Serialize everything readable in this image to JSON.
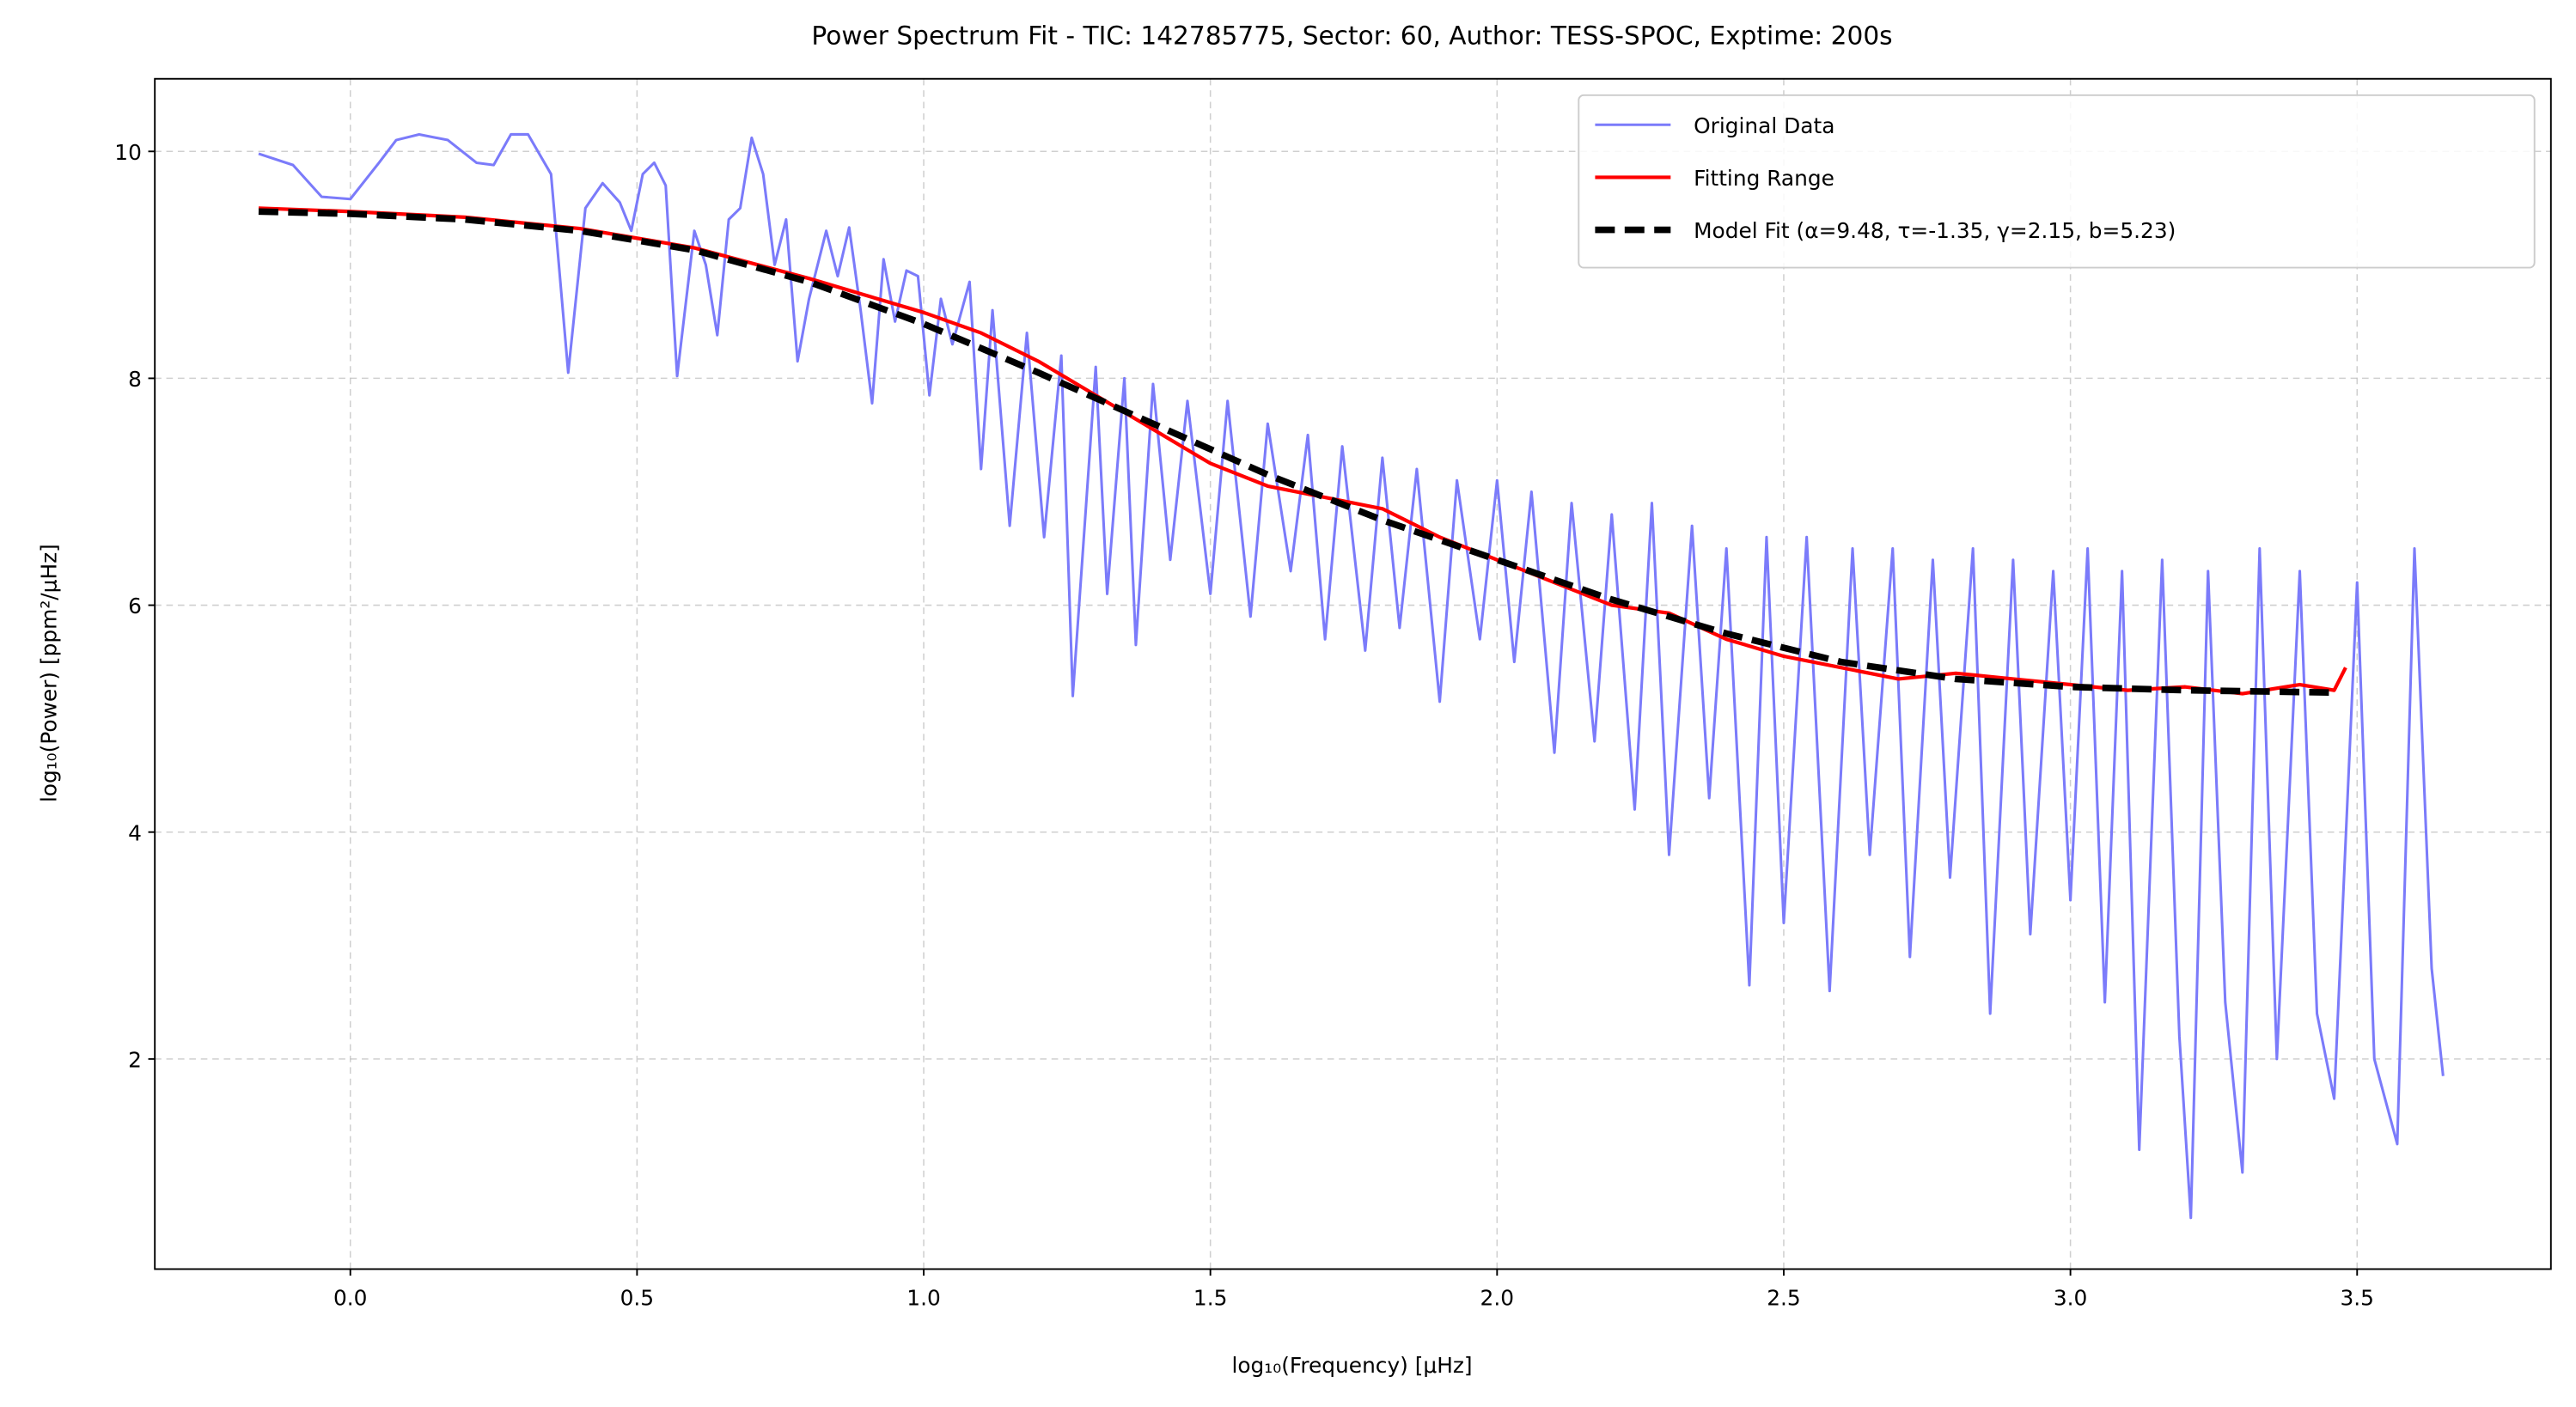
{
  "chart_data": {
    "type": "line",
    "title": "Power Spectrum Fit - TIC: 142785775, Sector: 60, Author: TESS-SPOC, Exptime: 200s",
    "x_label": "log₁₀(Frequency) [μHz]",
    "y_label": "log₁₀(Power) [ppm²/μHz]",
    "xlim": [
      -0.341,
      3.838
    ],
    "ylim": [
      0.148,
      10.64
    ],
    "xticks": [
      {
        "value": 0,
        "label": "0.0"
      },
      0.5,
      {
        "value": 1,
        "label": "1.0"
      },
      1.5,
      {
        "value": 2,
        "label": "2.0"
      },
      2.5,
      {
        "value": 3,
        "label": "3.0"
      },
      3.5
    ],
    "yticks": [
      2,
      4,
      6,
      8,
      10
    ],
    "grid": true,
    "legend": "upper right",
    "series": [
      {
        "name": "Original Data",
        "color": "#7b7bfa",
        "style": "solid",
        "x": [
          -0.16,
          -0.1,
          -0.05,
          0.0,
          0.05,
          0.08,
          0.12,
          0.17,
          0.22,
          0.25,
          0.28,
          0.31,
          0.35,
          0.38,
          0.41,
          0.44,
          0.47,
          0.49,
          0.51,
          0.53,
          0.55,
          0.57,
          0.6,
          0.62,
          0.64,
          0.66,
          0.68,
          0.7,
          0.72,
          0.74,
          0.76,
          0.78,
          0.8,
          0.83,
          0.85,
          0.87,
          0.89,
          0.91,
          0.93,
          0.95,
          0.97,
          0.99,
          1.01,
          1.03,
          1.05,
          1.08,
          1.1,
          1.12,
          1.15,
          1.18,
          1.21,
          1.24,
          1.26,
          1.3,
          1.32,
          1.35,
          1.37,
          1.4,
          1.43,
          1.46,
          1.5,
          1.53,
          1.57,
          1.6,
          1.64,
          1.67,
          1.7,
          1.73,
          1.77,
          1.8,
          1.83,
          1.86,
          1.9,
          1.93,
          1.97,
          2.0,
          2.03,
          2.06,
          2.1,
          2.13,
          2.17,
          2.2,
          2.24,
          2.27,
          2.3,
          2.34,
          2.37,
          2.4,
          2.44,
          2.47,
          2.5,
          2.54,
          2.58,
          2.62,
          2.65,
          2.69,
          2.72,
          2.76,
          2.79,
          2.83,
          2.86,
          2.9,
          2.93,
          2.97,
          3.0,
          3.03,
          3.06,
          3.09,
          3.12,
          3.16,
          3.19,
          3.21,
          3.24,
          3.27,
          3.3,
          3.33,
          3.36,
          3.4,
          3.43,
          3.46,
          3.5,
          3.53,
          3.57,
          3.6,
          3.63,
          3.65
        ],
        "values": [
          9.98,
          9.88,
          9.6,
          9.58,
          9.9,
          10.1,
          10.15,
          10.1,
          9.9,
          9.88,
          10.15,
          10.15,
          9.8,
          8.05,
          9.5,
          9.72,
          9.55,
          9.3,
          9.8,
          9.9,
          9.7,
          8.02,
          9.3,
          9.0,
          8.38,
          9.4,
          9.5,
          10.12,
          9.8,
          9.0,
          9.4,
          8.15,
          8.7,
          9.3,
          8.9,
          9.33,
          8.6,
          7.78,
          9.05,
          8.5,
          8.95,
          8.9,
          7.85,
          8.7,
          8.3,
          8.85,
          7.2,
          8.6,
          6.7,
          8.4,
          6.6,
          8.2,
          5.2,
          8.1,
          6.1,
          8.0,
          5.65,
          7.95,
          6.4,
          7.8,
          6.1,
          7.8,
          5.9,
          7.6,
          6.3,
          7.5,
          5.7,
          7.4,
          5.6,
          7.3,
          5.8,
          7.2,
          5.15,
          7.1,
          5.7,
          7.1,
          5.5,
          7.0,
          4.7,
          6.9,
          4.8,
          6.8,
          4.2,
          6.9,
          3.8,
          6.7,
          4.3,
          6.5,
          2.65,
          6.6,
          3.2,
          6.6,
          2.6,
          6.5,
          3.8,
          6.5,
          2.9,
          6.4,
          3.6,
          6.5,
          2.4,
          6.4,
          3.1,
          6.3,
          3.4,
          6.5,
          2.5,
          6.3,
          1.2,
          6.4,
          2.2,
          0.6,
          6.3,
          2.5,
          1.0,
          6.5,
          2.0,
          6.3,
          2.4,
          1.65,
          6.2,
          2.0,
          1.25,
          6.5,
          2.8,
          1.85
        ]
      },
      {
        "name": "Fitting Range",
        "color": "#ff0000",
        "style": "solid",
        "x": [
          -0.16,
          0,
          0.2,
          0.4,
          0.6,
          0.8,
          1.0,
          1.1,
          1.2,
          1.3,
          1.4,
          1.5,
          1.6,
          1.7,
          1.8,
          1.9,
          2.0,
          2.1,
          2.2,
          2.3,
          2.4,
          2.5,
          2.6,
          2.7,
          2.8,
          2.9,
          3.0,
          3.1,
          3.2,
          3.3,
          3.4,
          3.46,
          3.48
        ],
        "values": [
          9.5,
          9.47,
          9.42,
          9.32,
          9.15,
          8.88,
          8.58,
          8.4,
          8.15,
          7.85,
          7.55,
          7.25,
          7.05,
          6.95,
          6.85,
          6.6,
          6.4,
          6.2,
          6.0,
          5.93,
          5.7,
          5.55,
          5.45,
          5.35,
          5.4,
          5.35,
          5.3,
          5.25,
          5.28,
          5.22,
          5.3,
          5.25,
          5.45
        ]
      },
      {
        "name": "Model Fit (α=9.48, τ=-1.35, γ=2.15, b=5.23)",
        "color": "#000000",
        "style": "dashed",
        "x": [
          -0.16,
          0,
          0.2,
          0.4,
          0.6,
          0.8,
          1.0,
          1.2,
          1.4,
          1.6,
          1.8,
          2.0,
          2.2,
          2.4,
          2.6,
          2.8,
          3.0,
          3.2,
          3.46
        ],
        "values": [
          9.47,
          9.45,
          9.4,
          9.3,
          9.13,
          8.85,
          8.48,
          8.05,
          7.6,
          7.15,
          6.75,
          6.4,
          6.05,
          5.75,
          5.5,
          5.35,
          5.28,
          5.25,
          5.23
        ]
      }
    ]
  }
}
